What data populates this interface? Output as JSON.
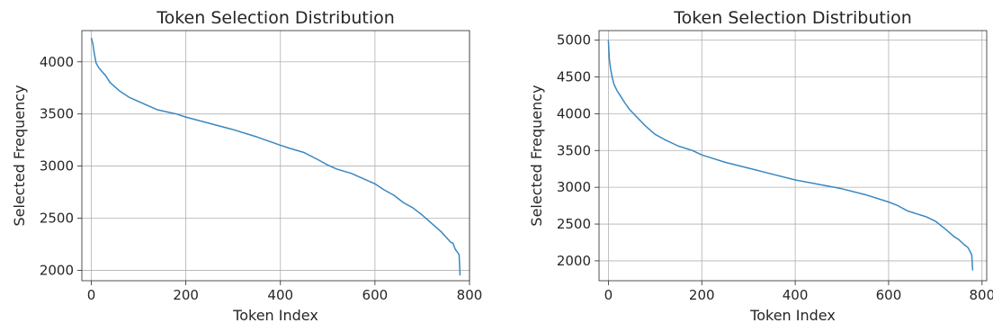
{
  "chart_data": [
    {
      "type": "line",
      "title": "Token Selection Distribution",
      "xlabel": "Token Index",
      "ylabel": "Selected Frequency",
      "xlim": [
        -20,
        800
      ],
      "ylim": [
        1900,
        4300
      ],
      "xticks": [
        0,
        200,
        400,
        600,
        800
      ],
      "yticks": [
        2000,
        2500,
        3000,
        3500,
        4000
      ],
      "grid": true,
      "series": [
        {
          "color": "#3a87c0",
          "x": [
            0,
            3,
            6,
            10,
            15,
            20,
            30,
            40,
            50,
            60,
            80,
            100,
            120,
            140,
            160,
            180,
            200,
            250,
            300,
            350,
            400,
            420,
            450,
            480,
            500,
            520,
            550,
            580,
            600,
            620,
            640,
            660,
            680,
            700,
            710,
            720,
            730,
            740,
            750,
            760,
            765,
            770,
            775,
            778,
            780
          ],
          "y": [
            4230,
            4180,
            4090,
            3990,
            3950,
            3920,
            3870,
            3800,
            3760,
            3720,
            3660,
            3620,
            3580,
            3540,
            3520,
            3500,
            3470,
            3410,
            3350,
            3280,
            3200,
            3170,
            3130,
            3060,
            3010,
            2970,
            2930,
            2870,
            2830,
            2770,
            2720,
            2650,
            2600,
            2530,
            2490,
            2450,
            2410,
            2370,
            2320,
            2270,
            2260,
            2200,
            2170,
            2150,
            1950
          ]
        }
      ]
    },
    {
      "type": "line",
      "title": "Token Selection Distribution",
      "xlabel": "Token Index",
      "ylabel": "Selected Frequency",
      "xlim": [
        -20,
        810
      ],
      "ylim": [
        1730,
        5130
      ],
      "xticks": [
        0,
        200,
        400,
        600,
        800
      ],
      "yticks": [
        2000,
        2500,
        3000,
        3500,
        4000,
        4500,
        5000
      ],
      "grid": true,
      "series": [
        {
          "color": "#3a87c0",
          "x": [
            0,
            2,
            5,
            8,
            12,
            18,
            25,
            35,
            45,
            60,
            80,
            100,
            120,
            150,
            180,
            200,
            220,
            250,
            300,
            350,
            400,
            450,
            500,
            550,
            600,
            620,
            640,
            680,
            700,
            720,
            740,
            750,
            760,
            770,
            775,
            778,
            780
          ],
          "y": [
            5000,
            4750,
            4600,
            4500,
            4400,
            4320,
            4250,
            4150,
            4060,
            3960,
            3830,
            3720,
            3650,
            3560,
            3500,
            3440,
            3400,
            3340,
            3260,
            3180,
            3100,
            3040,
            2980,
            2900,
            2800,
            2750,
            2680,
            2600,
            2540,
            2440,
            2330,
            2290,
            2230,
            2180,
            2120,
            2080,
            1870
          ]
        }
      ]
    }
  ]
}
